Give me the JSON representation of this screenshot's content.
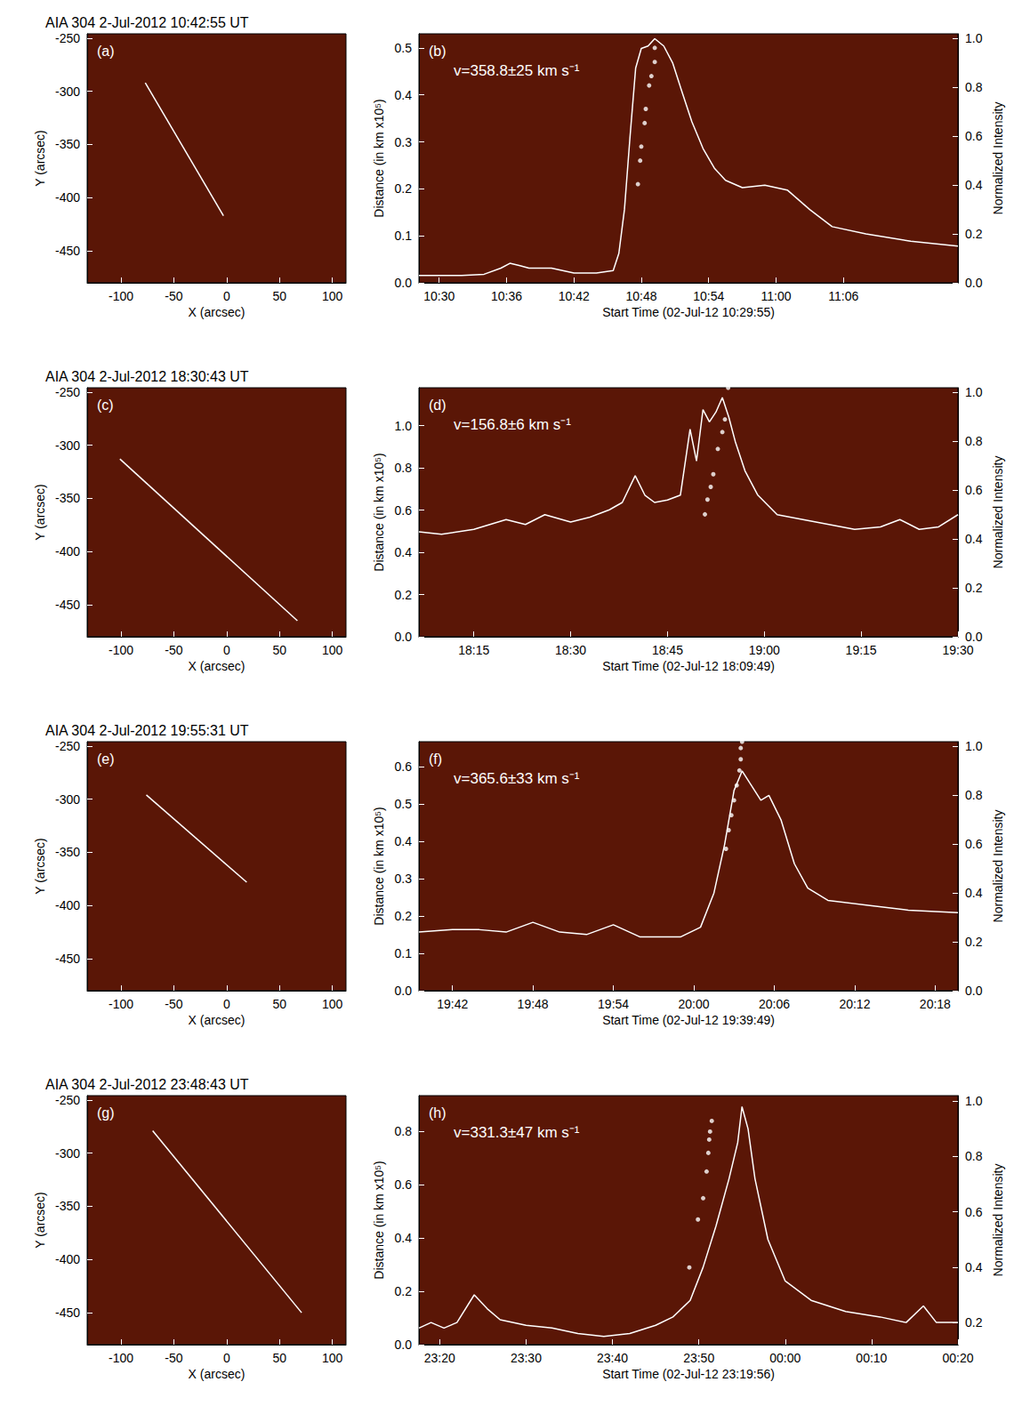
{
  "chart_data": [
    {
      "type": "line",
      "title": "AIA 304 2-Jul-2012 10:42:55 UT",
      "panel": "(a)",
      "x_label": "X (arcsec)",
      "y_label": "Y (arcsec)",
      "xlim": [
        -132,
        113
      ],
      "ylim": [
        -480,
        -246
      ],
      "xticks": [
        -100,
        -50,
        0,
        50,
        100
      ],
      "yticks": [
        -450,
        -400,
        -350,
        -300,
        -250
      ],
      "grid": false,
      "series": [
        {
          "type": "line",
          "color": "#ffffff",
          "line_style": "solid",
          "x": [
            -77,
            -3
          ],
          "values": [
            -292,
            -417
          ]
        }
      ]
    },
    {
      "type": "scatter",
      "panel": "(b)",
      "annotation": "v=358.8±25 km s⁻¹",
      "x_label": "Start Time (02-Jul-12 10:29:55)",
      "y_label": "Distance (in km x10⁵)",
      "y2_label": "Normalized Intensity",
      "xlim": [
        628.2,
        676.2
      ],
      "ylim": [
        0,
        0.53
      ],
      "y2lim": [
        0,
        1.02
      ],
      "xticks": [
        {
          "value": 630,
          "label": "10:30"
        },
        {
          "value": 636,
          "label": "10:36"
        },
        {
          "value": 642,
          "label": "10:42"
        },
        {
          "value": 648,
          "label": "10:48"
        },
        {
          "value": 654,
          "label": "10:54"
        },
        {
          "value": 660,
          "label": "11:00"
        },
        {
          "value": 666,
          "label": "11:06"
        }
      ],
      "yticks": [
        {
          "value": 0,
          "label": "0.0"
        },
        {
          "value": 0.1,
          "label": "0.1"
        },
        {
          "value": 0.2,
          "label": "0.2"
        },
        {
          "value": 0.3,
          "label": "0.3"
        },
        {
          "value": 0.4,
          "label": "0.4"
        },
        {
          "value": 0.5,
          "label": "0.5"
        }
      ],
      "y2ticks": [
        {
          "value": 0,
          "label": "0.0"
        },
        {
          "value": 0.2,
          "label": "0.2"
        },
        {
          "value": 0.4,
          "label": "0.4"
        },
        {
          "value": 0.6,
          "label": "0.6"
        },
        {
          "value": 0.8,
          "label": "0.8"
        },
        {
          "value": 1,
          "label": "1.0"
        }
      ],
      "grid": false,
      "series": [
        {
          "type": "scatter",
          "marker": "circle",
          "color": "#ffffff",
          "x": [
            647.7,
            647.9,
            648.0,
            648.3,
            648.4,
            648.7,
            648.9,
            649.2,
            649.2
          ],
          "values": [
            0.21,
            0.26,
            0.29,
            0.34,
            0.37,
            0.42,
            0.44,
            0.47,
            0.5
          ]
        },
        {
          "type": "line",
          "axis": "y2",
          "color": "#ffffff",
          "line_style": "solid",
          "x": [
            628.2,
            632,
            634,
            635.5,
            636.3,
            637.2,
            638,
            640,
            641,
            642,
            644,
            645.5,
            646,
            646.5,
            647,
            647.5,
            648,
            648.6,
            649.2,
            650,
            650.8,
            651.5,
            652.5,
            653.5,
            654.5,
            655.5,
            657,
            659,
            661,
            663,
            665,
            668,
            672,
            676.2
          ],
          "values": [
            0.03,
            0.03,
            0.035,
            0.06,
            0.08,
            0.07,
            0.06,
            0.06,
            0.05,
            0.04,
            0.04,
            0.05,
            0.12,
            0.3,
            0.6,
            0.88,
            0.96,
            0.97,
            1.0,
            0.97,
            0.9,
            0.8,
            0.66,
            0.55,
            0.47,
            0.42,
            0.39,
            0.4,
            0.38,
            0.3,
            0.23,
            0.2,
            0.17,
            0.15
          ]
        }
      ]
    },
    {
      "type": "line",
      "title": "AIA 304 2-Jul-2012 18:30:43 UT",
      "panel": "(c)",
      "x_label": "X (arcsec)",
      "y_label": "Y (arcsec)",
      "xlim": [
        -132,
        113
      ],
      "ylim": [
        -480,
        -246
      ],
      "xticks": [
        -100,
        -50,
        0,
        50,
        100
      ],
      "yticks": [
        -450,
        -400,
        -350,
        -300,
        -250
      ],
      "grid": false,
      "series": [
        {
          "type": "line",
          "color": "#ffffff",
          "line_style": "solid",
          "x": [
            -101,
            67
          ],
          "values": [
            -313,
            -465
          ]
        }
      ]
    },
    {
      "type": "scatter",
      "panel": "(d)",
      "annotation": "v=156.8±6 km s⁻¹",
      "x_label": "Start Time (02-Jul-12 18:09:49)",
      "y_label": "Distance (in km x10⁵)",
      "y2_label": "Normalized Intensity",
      "xlim": [
        1086.5,
        1170
      ],
      "ylim": [
        0,
        1.18
      ],
      "y2lim": [
        0,
        1.02
      ],
      "xticks": [
        {
          "value": 1095,
          "label": "18:15"
        },
        {
          "value": 1110,
          "label": "18:30"
        },
        {
          "value": 1125,
          "label": "18:45"
        },
        {
          "value": 1140,
          "label": "19:00"
        },
        {
          "value": 1155,
          "label": "19:15"
        },
        {
          "value": 1170,
          "label": "19:30"
        }
      ],
      "yticks": [
        {
          "value": 0,
          "label": "0.0"
        },
        {
          "value": 0.2,
          "label": "0.2"
        },
        {
          "value": 0.4,
          "label": "0.4"
        },
        {
          "value": 0.6,
          "label": "0.6"
        },
        {
          "value": 0.8,
          "label": "0.8"
        },
        {
          "value": 1,
          "label": "1.0"
        }
      ],
      "y2ticks": [
        {
          "value": 0,
          "label": "0.0"
        },
        {
          "value": 0.2,
          "label": "0.2"
        },
        {
          "value": 0.4,
          "label": "0.4"
        },
        {
          "value": 0.6,
          "label": "0.6"
        },
        {
          "value": 0.8,
          "label": "0.8"
        },
        {
          "value": 1,
          "label": "1.0"
        }
      ],
      "grid": false,
      "series": [
        {
          "type": "scatter",
          "marker": "circle",
          "color": "#ffffff",
          "x": [
            1130.8,
            1131.2,
            1131.7,
            1132.1,
            1132.8,
            1133.5,
            1133.9,
            1134.4
          ],
          "values": [
            0.58,
            0.65,
            0.71,
            0.77,
            0.89,
            0.97,
            1.03,
            1.18
          ]
        },
        {
          "type": "line",
          "axis": "y2",
          "color": "#ffffff",
          "line_style": "solid",
          "x": [
            1086.5,
            1090,
            1095,
            1100,
            1103,
            1106,
            1110,
            1113,
            1116,
            1118,
            1120,
            1121.5,
            1123,
            1125,
            1127,
            1128.5,
            1129.5,
            1130.5,
            1131.5,
            1132.5,
            1133.5,
            1134.5,
            1135.5,
            1137,
            1139,
            1142,
            1146,
            1150,
            1154,
            1158,
            1161,
            1164,
            1167,
            1170
          ],
          "values": [
            0.43,
            0.42,
            0.44,
            0.48,
            0.46,
            0.5,
            0.47,
            0.49,
            0.52,
            0.55,
            0.66,
            0.58,
            0.55,
            0.56,
            0.58,
            0.85,
            0.72,
            0.93,
            0.88,
            0.92,
            0.98,
            0.9,
            0.8,
            0.68,
            0.58,
            0.5,
            0.48,
            0.46,
            0.44,
            0.45,
            0.48,
            0.44,
            0.45,
            0.5
          ]
        }
      ]
    },
    {
      "type": "line",
      "title": "AIA 304 2-Jul-2012 19:55:31 UT",
      "panel": "(e)",
      "x_label": "X (arcsec)",
      "y_label": "Y (arcsec)",
      "xlim": [
        -132,
        113
      ],
      "ylim": [
        -480,
        -246
      ],
      "xticks": [
        -100,
        -50,
        0,
        50,
        100
      ],
      "yticks": [
        -450,
        -400,
        -350,
        -300,
        -250
      ],
      "grid": false,
      "series": [
        {
          "type": "line",
          "color": "#ffffff",
          "line_style": "solid",
          "x": [
            -76,
            19
          ],
          "values": [
            -296,
            -378
          ]
        }
      ]
    },
    {
      "type": "scatter",
      "panel": "(f)",
      "annotation": "v=365.6±33 km s⁻¹",
      "x_label": "Start Time (02-Jul-12 19:39:49)",
      "y_label": "Distance (in km x10⁵)",
      "y2_label": "Normalized Intensity",
      "xlim": [
        1179.5,
        1219.7
      ],
      "ylim": [
        0,
        0.667
      ],
      "y2lim": [
        0,
        1.02
      ],
      "xticks": [
        {
          "value": 1182,
          "label": "19:42"
        },
        {
          "value": 1188,
          "label": "19:48"
        },
        {
          "value": 1194,
          "label": "19:54"
        },
        {
          "value": 1200,
          "label": "20:00"
        },
        {
          "value": 1206,
          "label": "20:06"
        },
        {
          "value": 1212,
          "label": "20:12"
        },
        {
          "value": 1218,
          "label": "20:18"
        }
      ],
      "yticks": [
        {
          "value": 0,
          "label": "0.0"
        },
        {
          "value": 0.1,
          "label": "0.1"
        },
        {
          "value": 0.2,
          "label": "0.2"
        },
        {
          "value": 0.3,
          "label": "0.3"
        },
        {
          "value": 0.4,
          "label": "0.4"
        },
        {
          "value": 0.5,
          "label": "0.5"
        },
        {
          "value": 0.6,
          "label": "0.6"
        }
      ],
      "y2ticks": [
        {
          "value": 0,
          "label": "0.0"
        },
        {
          "value": 0.2,
          "label": "0.2"
        },
        {
          "value": 0.4,
          "label": "0.4"
        },
        {
          "value": 0.6,
          "label": "0.6"
        },
        {
          "value": 0.8,
          "label": "0.8"
        },
        {
          "value": 1,
          "label": "1.0"
        }
      ],
      "grid": false,
      "series": [
        {
          "type": "scatter",
          "marker": "circle",
          "color": "#ffffff",
          "x": [
            1202.4,
            1202.6,
            1202.8,
            1203.0,
            1203.2,
            1203.4,
            1203.5,
            1203.5,
            1203.6
          ],
          "values": [
            0.38,
            0.43,
            0.47,
            0.51,
            0.55,
            0.59,
            0.62,
            0.65,
            0.667
          ]
        },
        {
          "type": "line",
          "axis": "y2",
          "color": "#ffffff",
          "line_style": "solid",
          "x": [
            1179.5,
            1182,
            1184,
            1186,
            1188,
            1190,
            1192,
            1194,
            1196,
            1199,
            1200.5,
            1201.5,
            1202.3,
            1203,
            1203.6,
            1204.3,
            1205,
            1205.6,
            1206.5,
            1207.5,
            1208.5,
            1210,
            1213,
            1216,
            1219.7
          ],
          "values": [
            0.24,
            0.25,
            0.25,
            0.24,
            0.28,
            0.24,
            0.23,
            0.27,
            0.22,
            0.22,
            0.26,
            0.4,
            0.6,
            0.82,
            0.9,
            0.84,
            0.78,
            0.8,
            0.7,
            0.52,
            0.42,
            0.37,
            0.35,
            0.33,
            0.32
          ]
        }
      ]
    },
    {
      "type": "line",
      "title": "AIA 304 2-Jul-2012 23:48:43 UT",
      "panel": "(g)",
      "x_label": "X (arcsec)",
      "y_label": "Y (arcsec)",
      "xlim": [
        -132,
        113
      ],
      "ylim": [
        -480,
        -246
      ],
      "xticks": [
        -100,
        -50,
        0,
        50,
        100
      ],
      "yticks": [
        -450,
        -400,
        -350,
        -300,
        -250
      ],
      "grid": false,
      "series": [
        {
          "type": "line",
          "color": "#ffffff",
          "line_style": "solid",
          "x": [
            -70,
            71
          ],
          "values": [
            -279,
            -450
          ]
        }
      ]
    },
    {
      "type": "scatter",
      "panel": "(h)",
      "annotation": "v=331.3±47 km s⁻¹",
      "x_label": "Start Time (02-Jul-12 23:19:56)",
      "y_label": "Distance (in km x10⁵)",
      "y2_label": "Normalized Intensity",
      "xlim": [
        1397.6,
        1460
      ],
      "ylim": [
        0,
        0.935
      ],
      "y2lim": [
        0.12,
        1.02
      ],
      "xticks": [
        {
          "value": 1400,
          "label": "23:20"
        },
        {
          "value": 1410,
          "label": "23:30"
        },
        {
          "value": 1420,
          "label": "23:40"
        },
        {
          "value": 1430,
          "label": "23:50"
        },
        {
          "value": 1440,
          "label": "00:00"
        },
        {
          "value": 1450,
          "label": "00:10"
        },
        {
          "value": 1460,
          "label": "00:20"
        }
      ],
      "yticks": [
        {
          "value": 0,
          "label": "0.0"
        },
        {
          "value": 0.2,
          "label": "0.2"
        },
        {
          "value": 0.4,
          "label": "0.4"
        },
        {
          "value": 0.6,
          "label": "0.6"
        },
        {
          "value": 0.8,
          "label": "0.8"
        }
      ],
      "y2ticks": [
        {
          "value": 0.2,
          "label": "0.2"
        },
        {
          "value": 0.4,
          "label": "0.4"
        },
        {
          "value": 0.6,
          "label": "0.6"
        },
        {
          "value": 0.8,
          "label": "0.8"
        },
        {
          "value": 1,
          "label": "1.0"
        }
      ],
      "grid": false,
      "series": [
        {
          "type": "scatter",
          "marker": "circle",
          "color": "#ffffff",
          "x": [
            1428.9,
            1429.9,
            1430.5,
            1430.9,
            1431.1,
            1431.2,
            1431.3,
            1431.5
          ],
          "values": [
            0.29,
            0.47,
            0.55,
            0.65,
            0.72,
            0.77,
            0.8,
            0.84
          ]
        },
        {
          "type": "line",
          "axis": "y2",
          "color": "#ffffff",
          "line_style": "solid",
          "x": [
            1397.6,
            1399,
            1400.5,
            1402,
            1404,
            1405.5,
            1407,
            1410,
            1413,
            1416,
            1419,
            1422,
            1425,
            1427,
            1429,
            1430.5,
            1432,
            1433.5,
            1434.5,
            1435,
            1435.7,
            1436.5,
            1438,
            1440,
            1443,
            1447,
            1451,
            1454,
            1456,
            1457.5,
            1460
          ],
          "values": [
            0.18,
            0.2,
            0.18,
            0.2,
            0.3,
            0.25,
            0.21,
            0.19,
            0.18,
            0.16,
            0.15,
            0.16,
            0.19,
            0.22,
            0.28,
            0.4,
            0.55,
            0.72,
            0.85,
            0.98,
            0.9,
            0.72,
            0.5,
            0.35,
            0.28,
            0.24,
            0.22,
            0.2,
            0.26,
            0.2,
            0.2
          ]
        }
      ]
    }
  ]
}
